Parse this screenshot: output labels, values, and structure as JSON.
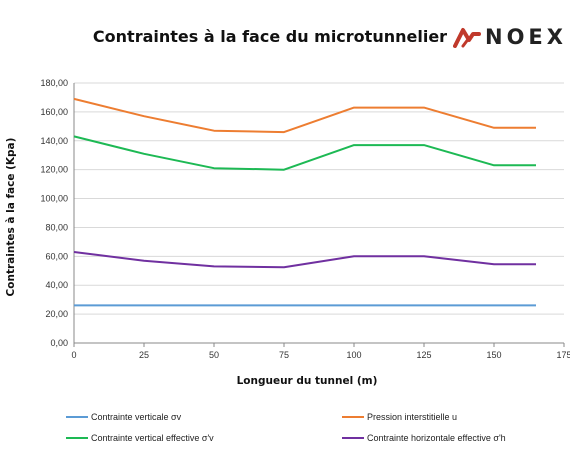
{
  "title": "Contraintes à la face du microtunnelier",
  "logo": {
    "text": "NOEX",
    "color": "#c0392b"
  },
  "chart_data": {
    "type": "line",
    "title": "Contraintes à la face du microtunnelier",
    "xlabel": "Longueur du tunnel (m)",
    "ylabel": "Contraintes à la face (Kpa)",
    "xlim": [
      0,
      175
    ],
    "ylim": [
      0,
      180
    ],
    "xticks": [
      "0",
      "25",
      "50",
      "75",
      "100",
      "125",
      "150",
      "175"
    ],
    "yticks": [
      "0,00",
      "20,00",
      "40,00",
      "60,00",
      "80,00",
      "100,00",
      "120,00",
      "140,00",
      "160,00",
      "180,00"
    ],
    "x": [
      0,
      25,
      50,
      75,
      100,
      125,
      150,
      165
    ],
    "grid": "horizontal",
    "legend_placement": "bottom",
    "series": [
      {
        "name": "Contrainte verticale σv",
        "color": "#5b9bd5",
        "values": [
          26,
          26,
          26,
          26,
          26,
          26,
          26,
          26
        ]
      },
      {
        "name": "Pression interstitielle u",
        "color": "#ed7d31",
        "values": [
          169,
          157,
          147,
          146,
          163,
          163,
          149,
          149
        ]
      },
      {
        "name": "Contrainte vertical effective σ'v",
        "color": "#1db954",
        "values": [
          143,
          131,
          121,
          120,
          137,
          137,
          123,
          123
        ]
      },
      {
        "name": "Contrainte horizontale effective σ'h",
        "color": "#7030a0",
        "values": [
          63,
          57,
          53,
          52.5,
          60,
          60,
          54.5,
          54.5
        ]
      }
    ]
  }
}
